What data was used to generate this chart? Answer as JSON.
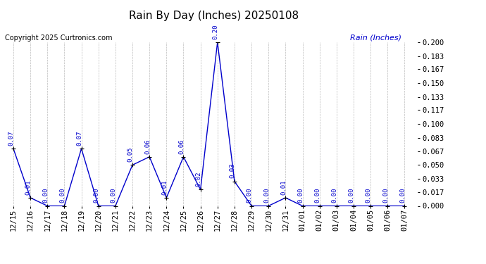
{
  "title": "Rain By Day (Inches) 20250108",
  "copyright_text": "Copyright 2025 Curtronics.com",
  "legend_label": "Rain (Inches)",
  "dates": [
    "12/15",
    "12/16",
    "12/17",
    "12/18",
    "12/19",
    "12/20",
    "12/21",
    "12/22",
    "12/23",
    "12/24",
    "12/25",
    "12/26",
    "12/27",
    "12/28",
    "12/29",
    "12/30",
    "12/31",
    "01/01",
    "01/02",
    "01/03",
    "01/04",
    "01/05",
    "01/06",
    "01/07"
  ],
  "values": [
    0.07,
    0.01,
    0.0,
    0.0,
    0.07,
    0.0,
    0.0,
    0.05,
    0.06,
    0.01,
    0.06,
    0.02,
    0.2,
    0.03,
    0.0,
    0.0,
    0.01,
    0.0,
    0.0,
    0.0,
    0.0,
    0.0,
    0.0,
    0.0
  ],
  "line_color": "#0000cc",
  "marker_color": "#000000",
  "annotation_color": "#0000cc",
  "title_color": "#000000",
  "copyright_color": "#000000",
  "legend_color": "#0000cc",
  "background_color": "#ffffff",
  "grid_color": "#bbbbbb",
  "ylim": [
    0.0,
    0.2
  ],
  "yticks": [
    0.0,
    0.017,
    0.033,
    0.05,
    0.067,
    0.083,
    0.1,
    0.117,
    0.133,
    0.15,
    0.167,
    0.183,
    0.2
  ],
  "title_fontsize": 11,
  "annotation_fontsize": 6.5,
  "tick_fontsize": 7.5,
  "copyright_fontsize": 7,
  "legend_fontsize": 8
}
